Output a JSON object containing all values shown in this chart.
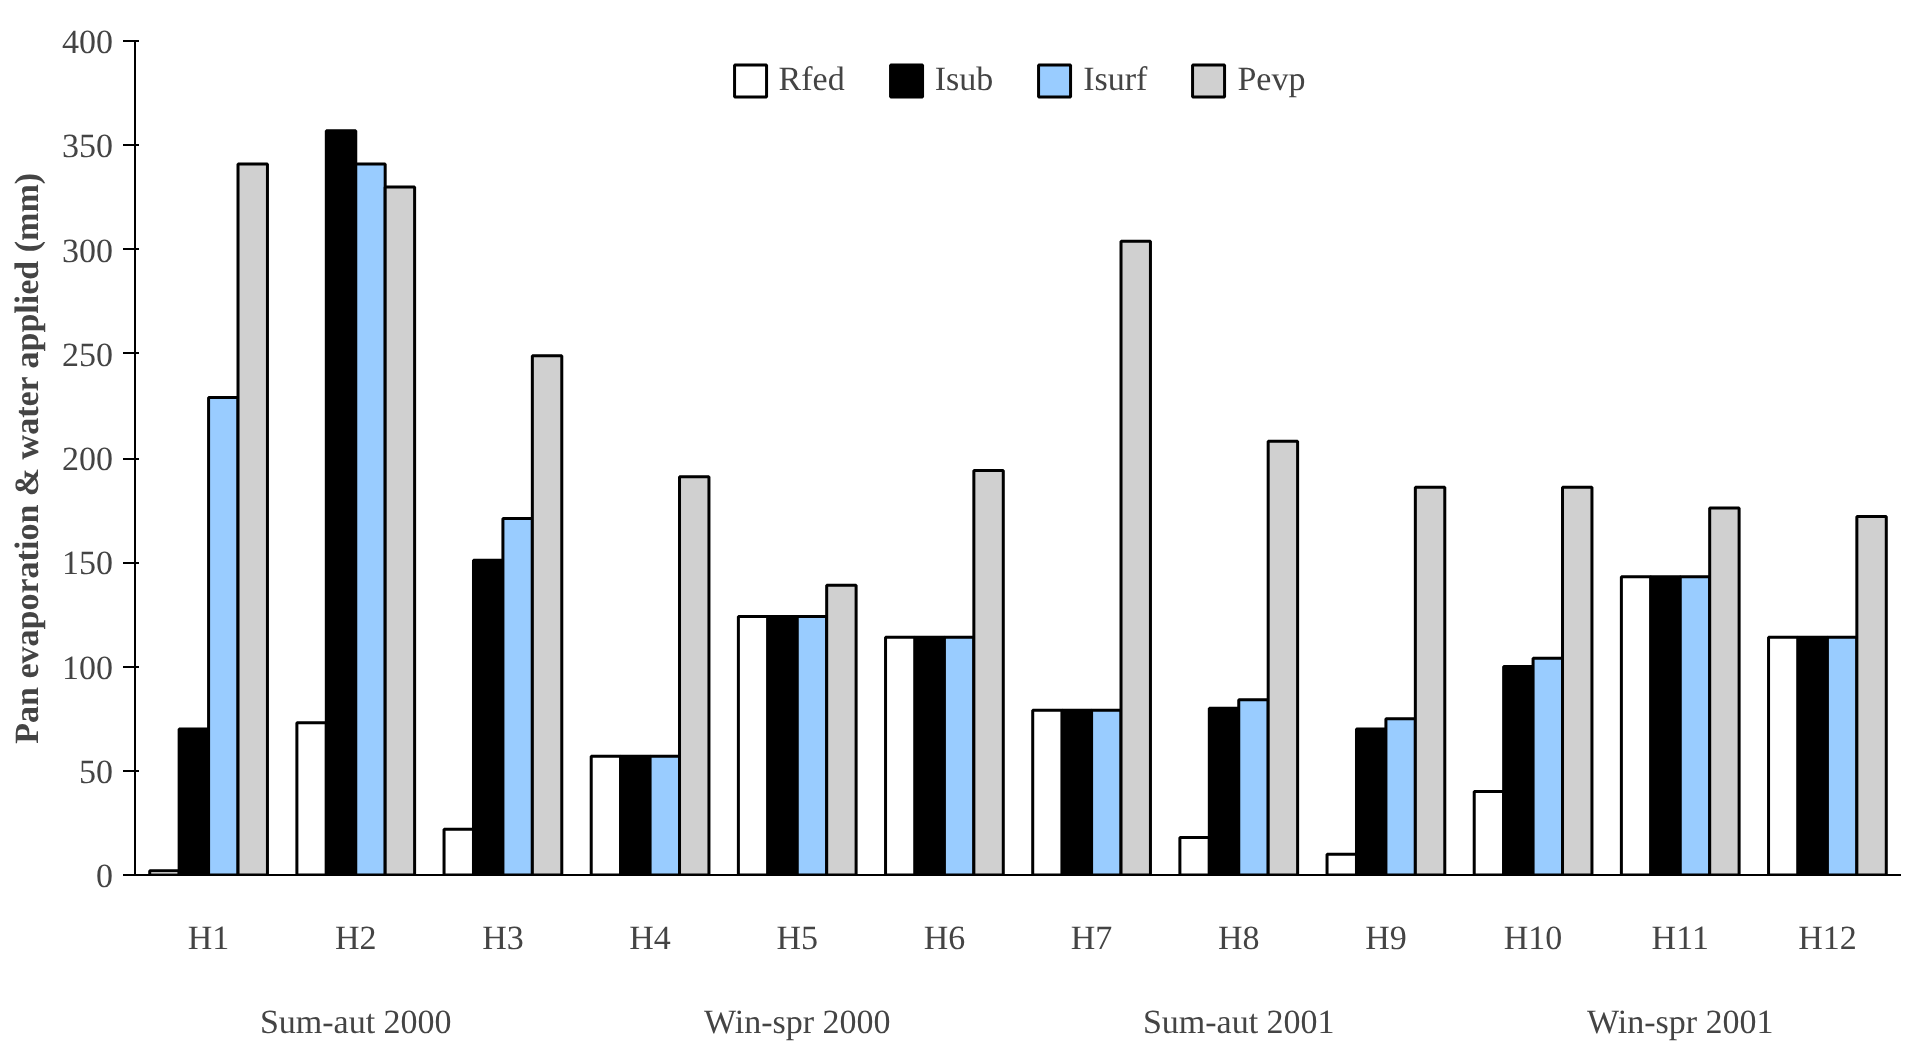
{
  "chart_data": {
    "type": "bar",
    "ylabel": "Pan evaporation & water applied (mm)",
    "categories": [
      "H1",
      "H2",
      "H3",
      "H4",
      "H5",
      "H6",
      "H7",
      "H8",
      "H9",
      "H10",
      "H11",
      "H12"
    ],
    "series": [
      {
        "name": "Rfed",
        "color": "#ffffff",
        "values": [
          2,
          73,
          22,
          57,
          124,
          114,
          79,
          18,
          10,
          40,
          143,
          114
        ]
      },
      {
        "name": "Isub",
        "color": "#000000",
        "values": [
          70,
          357,
          151,
          57,
          124,
          114,
          79,
          80,
          70,
          100,
          143,
          114
        ]
      },
      {
        "name": "Isurf",
        "color": "#99ccff",
        "values": [
          229,
          341,
          171,
          57,
          124,
          114,
          79,
          84,
          75,
          104,
          143,
          114
        ]
      },
      {
        "name": "Pevp",
        "color": "#d0d0d0",
        "values": [
          341,
          330,
          249,
          191,
          139,
          194,
          304,
          208,
          186,
          186,
          176,
          172
        ]
      }
    ],
    "ylim": [
      0,
      400
    ],
    "yticks": [
      0,
      50,
      100,
      150,
      200,
      250,
      300,
      350,
      400
    ],
    "grid": false,
    "legend": "top",
    "annotations": [
      "Sum-aut 2000",
      "Win-spr 2000",
      "Sum-aut 2001",
      "Win-spr 2001"
    ]
  }
}
